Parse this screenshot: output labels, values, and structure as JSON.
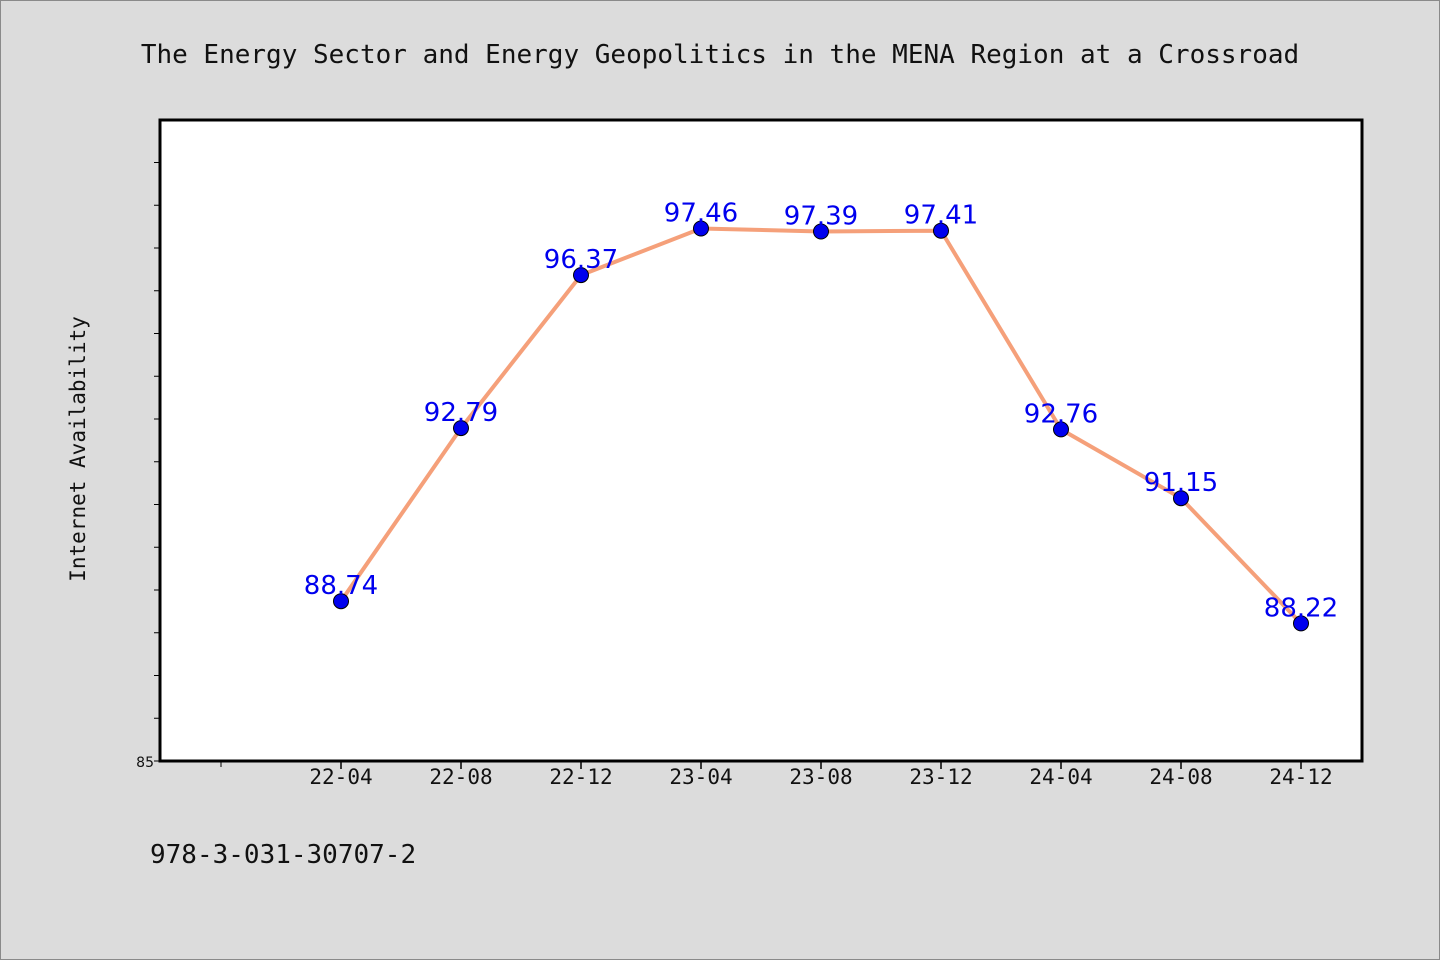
{
  "chart_data": {
    "type": "line",
    "title": "The Energy Sector and Energy Geopolitics in the MENA Region at a Crossroad",
    "xlabel": "",
    "ylabel": "Internet Availability",
    "categories": [
      "22-04",
      "22-08",
      "22-12",
      "23-04",
      "23-08",
      "23-12",
      "24-04",
      "24-08",
      "24-12"
    ],
    "series": [
      {
        "values": [
          88.74,
          92.79,
          96.37,
          97.46,
          97.39,
          97.41,
          92.76,
          91.15,
          88.22
        ],
        "labels": [
          "88.74",
          "92.79",
          "96.37",
          "97.46",
          "97.39",
          "97.41",
          "92.76",
          "91.15",
          "88.22"
        ],
        "line_color": "#f5a07a",
        "marker_color": "#0000ee"
      }
    ],
    "ylim": [
      85,
      100
    ],
    "yticks_labeled": [
      "85"
    ],
    "grid": false,
    "legend": "none"
  },
  "footer": {
    "isbn": "978-3-031-30707-2"
  },
  "colors": {
    "background": "#dcdcdc",
    "plot_area": "#ffffff",
    "label": "#0000ee"
  }
}
